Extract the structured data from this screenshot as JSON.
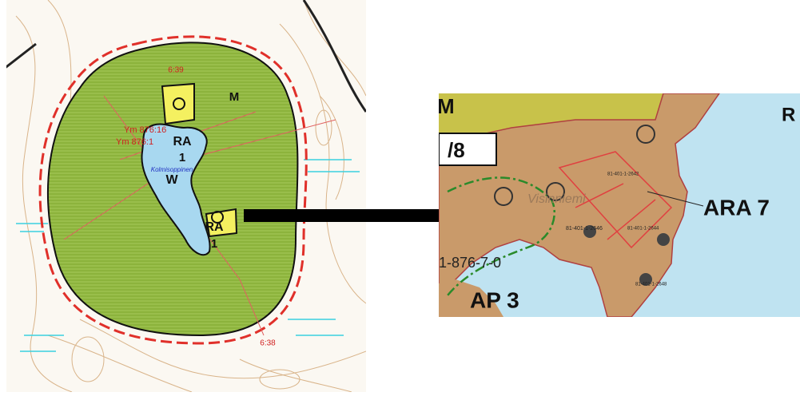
{
  "left_map": {
    "labels": [
      "6:39",
      "M",
      "RA",
      "1",
      "W",
      "RA",
      "1",
      "Ym 876:16",
      "Ym 876:1",
      "Kolmisoppinen",
      "6:38"
    ]
  },
  "right_map": {
    "labels": [
      "M",
      "/8",
      "R",
      "Visinniemi",
      "81-401-1-2642",
      "ARA 7",
      "81-401-1-2646",
      "81-401-1-2644",
      "1-876-7-0",
      "AP 3",
      "81-401-1-2648"
    ]
  }
}
